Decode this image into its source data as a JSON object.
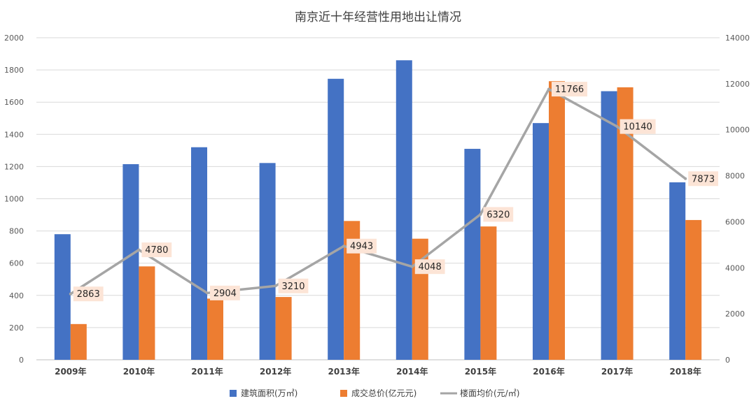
{
  "chart_data": {
    "type": "bar",
    "title": "南京近十年经营性用地出让情况",
    "categories": [
      "2009年",
      "2010年",
      "2011年",
      "2012年",
      "2013年",
      "2014年",
      "2015年",
      "2016年",
      "2017年",
      "2018年"
    ],
    "series": [
      {
        "name": "建筑面积(万㎡)",
        "type": "bar",
        "axis": "left",
        "color": "#4472C4",
        "values": [
          780,
          1215,
          1320,
          1222,
          1745,
          1860,
          1310,
          1470,
          1668,
          1102
        ]
      },
      {
        "name": "成交总价(亿元元)",
        "type": "bar",
        "axis": "left",
        "color": "#ED7D31",
        "values": [
          222,
          580,
          380,
          390,
          862,
          752,
          828,
          1730,
          1692,
          868
        ]
      },
      {
        "name": "楼面均价(元/㎡)",
        "type": "line",
        "axis": "right",
        "color": "#A5A5A5",
        "values": [
          2863,
          4780,
          2904,
          3210,
          4943,
          4048,
          6320,
          11766,
          10140,
          7873
        ]
      }
    ],
    "data_labels": [
      "2863",
      "4780",
      "2904",
      "3210",
      "4943",
      "4048",
      "6320",
      "11766",
      "10140",
      "7873"
    ],
    "y_left": {
      "min": 0,
      "max": 2000,
      "ticks": [
        "0",
        "200",
        "400",
        "600",
        "800",
        "1000",
        "1200",
        "1400",
        "1600",
        "1800",
        "2000"
      ]
    },
    "y_right": {
      "min": 0,
      "max": 14000,
      "ticks": [
        "0",
        "2000",
        "4000",
        "6000",
        "8000",
        "10000",
        "12000",
        "14000"
      ]
    },
    "grid": true,
    "legend_position": "bottom",
    "label_box_color": "#FCE4D6"
  }
}
